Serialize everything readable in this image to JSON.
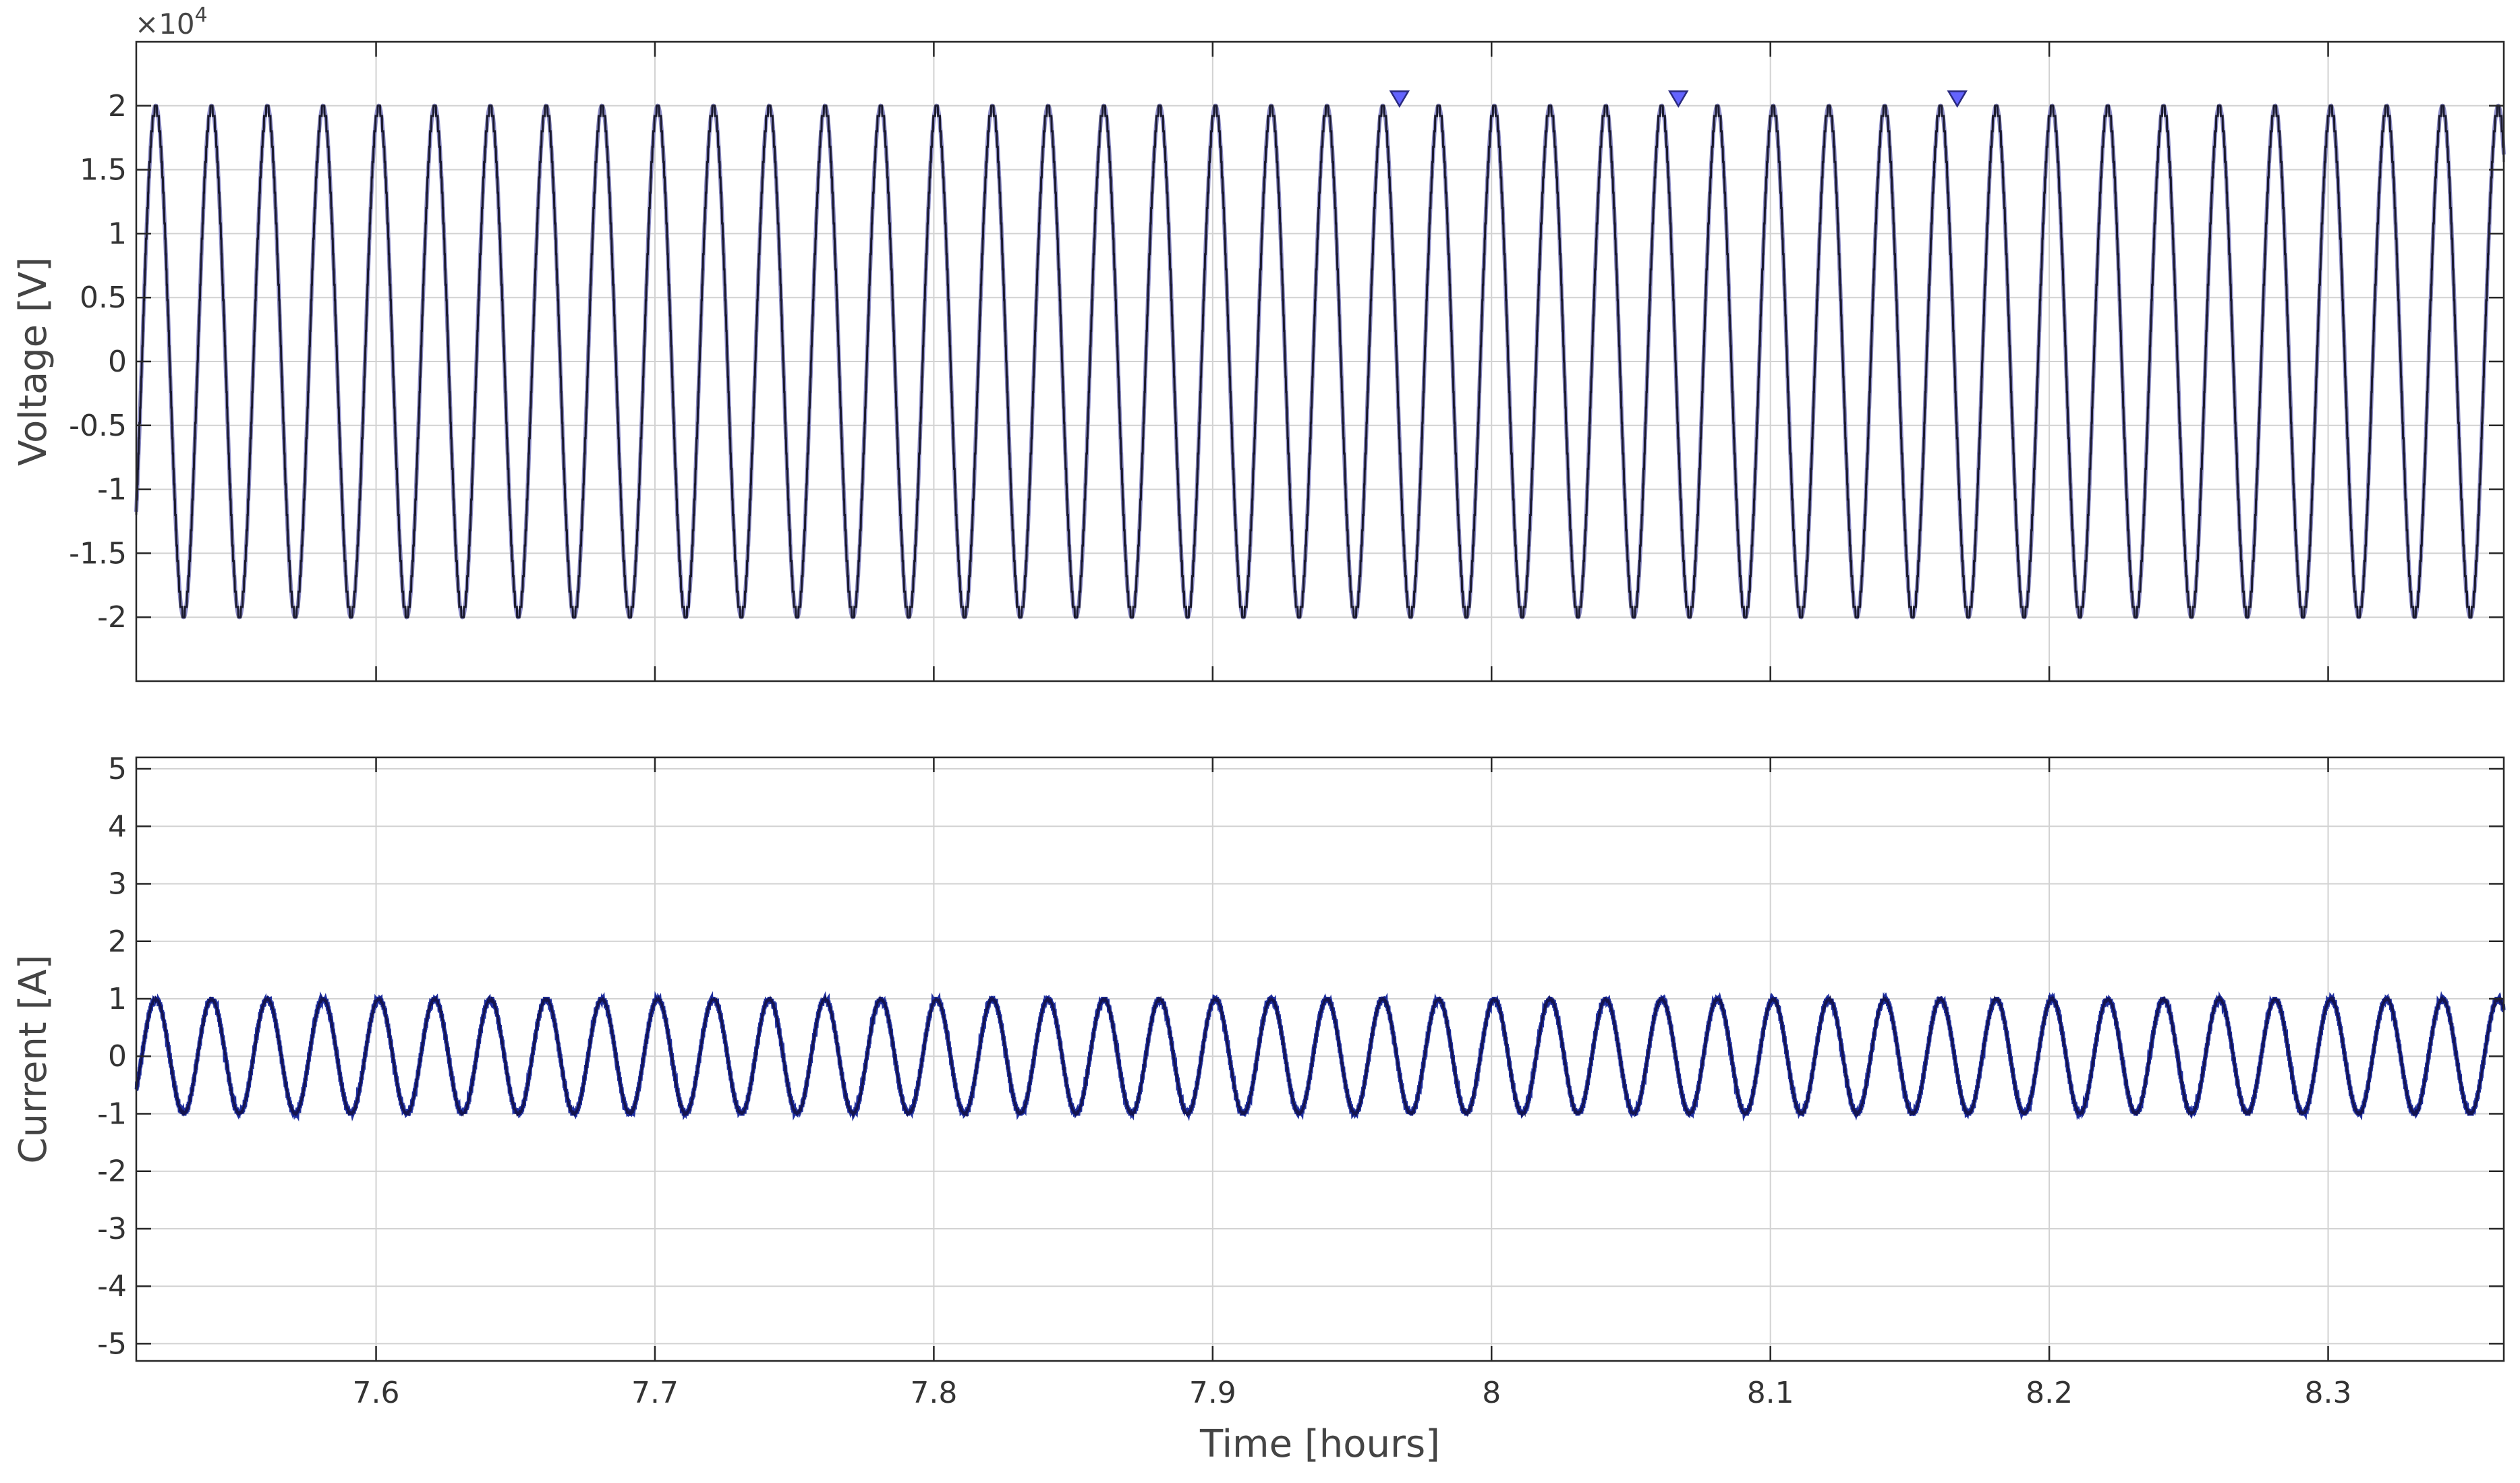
{
  "chart_data": [
    {
      "type": "line",
      "panel": "top",
      "title": "",
      "xlabel": "",
      "ylabel": "Voltage [V]",
      "exponent_label": "×10",
      "exponent_power": "4",
      "xlim": [
        7.514,
        8.363
      ],
      "ylim": [
        -2.5,
        2.5
      ],
      "yticks": [
        -2,
        -1.5,
        -1,
        -0.5,
        0,
        0.5,
        1,
        1.5,
        2
      ],
      "ytick_labels": [
        "-2",
        "-1.5",
        "-1",
        "-0.5",
        "0",
        "0.5",
        "1",
        "1.5",
        "2"
      ],
      "grid": true,
      "series": [
        {
          "amplitude": 2.0,
          "frequency_cycles_per_hour": 50,
          "phase_zero_crossing_hours": 7.516,
          "line_color": "#1a1a2e",
          "overlay_color": "#8e8ec8"
        }
      ],
      "markers": [
        {
          "x": 7.967,
          "y": 2.06
        },
        {
          "x": 8.067,
          "y": 2.06
        },
        {
          "x": 8.167,
          "y": 2.06
        }
      ],
      "marker_color": "#6464ff"
    },
    {
      "type": "line",
      "panel": "bottom",
      "title": "",
      "xlabel": "Time [hours]",
      "ylabel": "Current [A]",
      "xlim": [
        7.514,
        8.363
      ],
      "ylim": [
        -5.3,
        5.2
      ],
      "xticks": [
        7.6,
        7.7,
        7.8,
        7.9,
        8.0,
        8.1,
        8.2,
        8.3
      ],
      "xtick_labels": [
        "7.6",
        "7.7",
        "7.8",
        "7.9",
        "8",
        "8.1",
        "8.2",
        "8.3"
      ],
      "yticks": [
        -5,
        -4,
        -3,
        -2,
        -1,
        0,
        1,
        2,
        3,
        4,
        5
      ],
      "ytick_labels": [
        "-5",
        "-4",
        "-3",
        "-2",
        "-1",
        "0",
        "1",
        "2",
        "3",
        "4",
        "5"
      ],
      "grid": true,
      "series": [
        {
          "amplitude": 1.0,
          "frequency_cycles_per_hour": 50,
          "phase_zero_crossing_hours": 7.516,
          "line_color": "#141450",
          "marker_color": "#1e2ea0"
        }
      ]
    }
  ]
}
